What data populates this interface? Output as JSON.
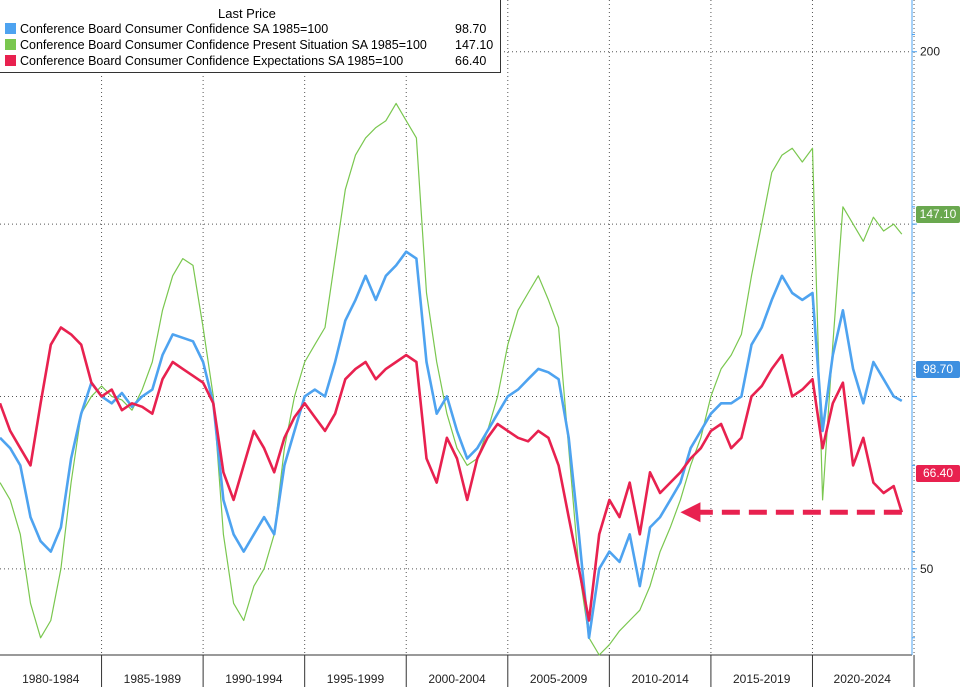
{
  "chart_data": {
    "type": "line",
    "legend_header": "Last Price",
    "legend_placement": "top-left",
    "grid": "dotted",
    "ylim": [
      25,
      215
    ],
    "y_ticks": [
      50,
      100,
      150,
      200
    ],
    "y_tick_labels": [
      "50",
      "",
      "",
      "200"
    ],
    "x_start": 1980,
    "x_end": 2024.9,
    "x_period_labels": [
      "1980-1984",
      "1985-1989",
      "1990-1994",
      "1995-1999",
      "2000-2004",
      "2005-2009",
      "2010-2014",
      "2015-2019",
      "2020-2024"
    ],
    "series": [
      {
        "name": "Conference Board Consumer Confidence SA 1985=100",
        "last": "98.70",
        "color": "#4ea3f0",
        "points": [
          [
            1980,
            88
          ],
          [
            1980.5,
            85
          ],
          [
            1981,
            80
          ],
          [
            1981.5,
            65
          ],
          [
            1982,
            58
          ],
          [
            1982.5,
            55
          ],
          [
            1983,
            62
          ],
          [
            1983.5,
            82
          ],
          [
            1984,
            95
          ],
          [
            1984.5,
            104
          ],
          [
            1985,
            100
          ],
          [
            1985.5,
            98
          ],
          [
            1986,
            101
          ],
          [
            1986.5,
            97
          ],
          [
            1987,
            100
          ],
          [
            1987.5,
            102
          ],
          [
            1988,
            112
          ],
          [
            1988.5,
            118
          ],
          [
            1989,
            117
          ],
          [
            1989.5,
            116
          ],
          [
            1990,
            110
          ],
          [
            1990.5,
            98
          ],
          [
            1991,
            70
          ],
          [
            1991.5,
            60
          ],
          [
            1992,
            55
          ],
          [
            1992.5,
            60
          ],
          [
            1993,
            65
          ],
          [
            1993.5,
            60
          ],
          [
            1994,
            80
          ],
          [
            1994.5,
            90
          ],
          [
            1995,
            100
          ],
          [
            1995.5,
            102
          ],
          [
            1996,
            100
          ],
          [
            1996.5,
            110
          ],
          [
            1997,
            122
          ],
          [
            1997.5,
            128
          ],
          [
            1998,
            135
          ],
          [
            1998.5,
            128
          ],
          [
            1999,
            135
          ],
          [
            1999.5,
            138
          ],
          [
            2000,
            142
          ],
          [
            2000.5,
            140
          ],
          [
            2001,
            110
          ],
          [
            2001.5,
            95
          ],
          [
            2002,
            100
          ],
          [
            2002.5,
            90
          ],
          [
            2003,
            82
          ],
          [
            2003.5,
            85
          ],
          [
            2004,
            90
          ],
          [
            2004.5,
            95
          ],
          [
            2005,
            100
          ],
          [
            2005.5,
            102
          ],
          [
            2006,
            105
          ],
          [
            2006.5,
            108
          ],
          [
            2007,
            107
          ],
          [
            2007.5,
            105
          ],
          [
            2008,
            88
          ],
          [
            2008.5,
            60
          ],
          [
            2009,
            30
          ],
          [
            2009.5,
            50
          ],
          [
            2010,
            55
          ],
          [
            2010.5,
            52
          ],
          [
            2011,
            60
          ],
          [
            2011.5,
            45
          ],
          [
            2012,
            62
          ],
          [
            2012.5,
            65
          ],
          [
            2013,
            70
          ],
          [
            2013.5,
            75
          ],
          [
            2014,
            85
          ],
          [
            2014.5,
            90
          ],
          [
            2015,
            95
          ],
          [
            2015.5,
            98
          ],
          [
            2016,
            98
          ],
          [
            2016.5,
            100
          ],
          [
            2017,
            115
          ],
          [
            2017.5,
            120
          ],
          [
            2018,
            128
          ],
          [
            2018.5,
            135
          ],
          [
            2019,
            130
          ],
          [
            2019.5,
            128
          ],
          [
            2020,
            130
          ],
          [
            2020.5,
            90
          ],
          [
            2021,
            112
          ],
          [
            2021.5,
            125
          ],
          [
            2022,
            108
          ],
          [
            2022.5,
            98
          ],
          [
            2023,
            110
          ],
          [
            2023.5,
            105
          ],
          [
            2024,
            100
          ],
          [
            2024.4,
            98.7
          ]
        ]
      },
      {
        "name": "Conference Board Consumer Confidence Present Situation SA 1985=100",
        "last": "147.10",
        "color": "#7ac74f",
        "points": [
          [
            1980,
            75
          ],
          [
            1980.5,
            70
          ],
          [
            1981,
            60
          ],
          [
            1981.5,
            40
          ],
          [
            1982,
            30
          ],
          [
            1982.5,
            35
          ],
          [
            1983,
            50
          ],
          [
            1983.5,
            75
          ],
          [
            1984,
            95
          ],
          [
            1984.5,
            100
          ],
          [
            1985,
            103
          ],
          [
            1985.5,
            100
          ],
          [
            1986,
            99
          ],
          [
            1986.5,
            96
          ],
          [
            1987,
            102
          ],
          [
            1987.5,
            110
          ],
          [
            1988,
            125
          ],
          [
            1988.5,
            135
          ],
          [
            1989,
            140
          ],
          [
            1989.5,
            138
          ],
          [
            1990,
            120
          ],
          [
            1990.5,
            100
          ],
          [
            1991,
            60
          ],
          [
            1991.5,
            40
          ],
          [
            1992,
            35
          ],
          [
            1992.5,
            45
          ],
          [
            1993,
            50
          ],
          [
            1993.5,
            60
          ],
          [
            1994,
            85
          ],
          [
            1994.5,
            100
          ],
          [
            1995,
            110
          ],
          [
            1995.5,
            115
          ],
          [
            1996,
            120
          ],
          [
            1996.5,
            140
          ],
          [
            1997,
            160
          ],
          [
            1997.5,
            170
          ],
          [
            1998,
            175
          ],
          [
            1998.5,
            178
          ],
          [
            1999,
            180
          ],
          [
            1999.5,
            185
          ],
          [
            2000,
            180
          ],
          [
            2000.5,
            175
          ],
          [
            2001,
            130
          ],
          [
            2001.5,
            110
          ],
          [
            2002,
            95
          ],
          [
            2002.5,
            85
          ],
          [
            2003,
            80
          ],
          [
            2003.5,
            82
          ],
          [
            2004,
            90
          ],
          [
            2004.5,
            100
          ],
          [
            2005,
            115
          ],
          [
            2005.5,
            125
          ],
          [
            2006,
            130
          ],
          [
            2006.5,
            135
          ],
          [
            2007,
            128
          ],
          [
            2007.5,
            120
          ],
          [
            2008,
            85
          ],
          [
            2008.5,
            50
          ],
          [
            2009,
            30
          ],
          [
            2009.5,
            25
          ],
          [
            2010,
            28
          ],
          [
            2010.5,
            32
          ],
          [
            2011,
            35
          ],
          [
            2011.5,
            38
          ],
          [
            2012,
            45
          ],
          [
            2012.5,
            55
          ],
          [
            2013,
            62
          ],
          [
            2013.5,
            70
          ],
          [
            2014,
            80
          ],
          [
            2014.5,
            88
          ],
          [
            2015,
            100
          ],
          [
            2015.5,
            108
          ],
          [
            2016,
            112
          ],
          [
            2016.5,
            118
          ],
          [
            2017,
            135
          ],
          [
            2017.5,
            150
          ],
          [
            2018,
            165
          ],
          [
            2018.5,
            170
          ],
          [
            2019,
            172
          ],
          [
            2019.5,
            168
          ],
          [
            2020,
            172
          ],
          [
            2020.5,
            70
          ],
          [
            2021,
            115
          ],
          [
            2021.5,
            155
          ],
          [
            2022,
            150
          ],
          [
            2022.5,
            145
          ],
          [
            2023,
            152
          ],
          [
            2023.5,
            148
          ],
          [
            2024,
            150
          ],
          [
            2024.4,
            147.1
          ]
        ]
      },
      {
        "name": "Conference Board Consumer Confidence Expectations SA 1985=100",
        "last": "66.40",
        "color": "#e8214f",
        "points": [
          [
            1980,
            98
          ],
          [
            1980.5,
            90
          ],
          [
            1981,
            85
          ],
          [
            1981.5,
            80
          ],
          [
            1982,
            98
          ],
          [
            1982.5,
            115
          ],
          [
            1983,
            120
          ],
          [
            1983.5,
            118
          ],
          [
            1984,
            115
          ],
          [
            1984.5,
            104
          ],
          [
            1985,
            100
          ],
          [
            1985.5,
            102
          ],
          [
            1986,
            96
          ],
          [
            1986.5,
            98
          ],
          [
            1987,
            97
          ],
          [
            1987.5,
            95
          ],
          [
            1988,
            105
          ],
          [
            1988.5,
            110
          ],
          [
            1989,
            108
          ],
          [
            1989.5,
            106
          ],
          [
            1990,
            104
          ],
          [
            1990.5,
            98
          ],
          [
            1991,
            78
          ],
          [
            1991.5,
            70
          ],
          [
            1992,
            80
          ],
          [
            1992.5,
            90
          ],
          [
            1993,
            85
          ],
          [
            1993.5,
            78
          ],
          [
            1994,
            88
          ],
          [
            1994.5,
            94
          ],
          [
            1995,
            98
          ],
          [
            1995.5,
            94
          ],
          [
            1996,
            90
          ],
          [
            1996.5,
            95
          ],
          [
            1997,
            105
          ],
          [
            1997.5,
            108
          ],
          [
            1998,
            110
          ],
          [
            1998.5,
            105
          ],
          [
            1999,
            108
          ],
          [
            1999.5,
            110
          ],
          [
            2000,
            112
          ],
          [
            2000.5,
            110
          ],
          [
            2001,
            82
          ],
          [
            2001.5,
            75
          ],
          [
            2002,
            88
          ],
          [
            2002.5,
            82
          ],
          [
            2003,
            70
          ],
          [
            2003.5,
            82
          ],
          [
            2004,
            88
          ],
          [
            2004.5,
            92
          ],
          [
            2005,
            90
          ],
          [
            2005.5,
            88
          ],
          [
            2006,
            87
          ],
          [
            2006.5,
            90
          ],
          [
            2007,
            88
          ],
          [
            2007.5,
            80
          ],
          [
            2008,
            65
          ],
          [
            2008.5,
            50
          ],
          [
            2009,
            35
          ],
          [
            2009.5,
            60
          ],
          [
            2010,
            70
          ],
          [
            2010.5,
            65
          ],
          [
            2011,
            75
          ],
          [
            2011.5,
            60
          ],
          [
            2012,
            78
          ],
          [
            2012.5,
            72
          ],
          [
            2013,
            75
          ],
          [
            2013.5,
            78
          ],
          [
            2014,
            82
          ],
          [
            2014.5,
            85
          ],
          [
            2015,
            90
          ],
          [
            2015.5,
            92
          ],
          [
            2016,
            85
          ],
          [
            2016.5,
            88
          ],
          [
            2017,
            100
          ],
          [
            2017.5,
            103
          ],
          [
            2018,
            108
          ],
          [
            2018.5,
            112
          ],
          [
            2019,
            100
          ],
          [
            2019.5,
            102
          ],
          [
            2020,
            105
          ],
          [
            2020.5,
            85
          ],
          [
            2021,
            98
          ],
          [
            2021.5,
            104
          ],
          [
            2022,
            80
          ],
          [
            2022.5,
            88
          ],
          [
            2023,
            75
          ],
          [
            2023.5,
            72
          ],
          [
            2024,
            74
          ],
          [
            2024.4,
            66.4
          ]
        ]
      }
    ],
    "annotation": {
      "type": "dashed-arrow",
      "y": 66.4,
      "x_from": 2024.4,
      "x_to": 2013.5,
      "color": "#e8214f"
    }
  }
}
